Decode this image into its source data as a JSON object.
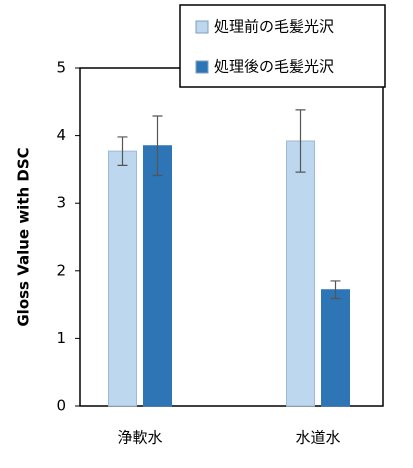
{
  "chart_data": {
    "type": "bar",
    "ylabel": "Gloss Value with DSC",
    "categories": [
      "浄軟水",
      "水道水"
    ],
    "series": [
      {
        "name": "処理前の毛髪光沢",
        "color": "#bdd7ee",
        "values": [
          3.77,
          3.92
        ],
        "errors": [
          0.21,
          0.46
        ]
      },
      {
        "name": "処理後の毛髪光沢",
        "color": "#2e75b6",
        "values": [
          3.85,
          1.72
        ],
        "errors": [
          0.44,
          0.13
        ]
      }
    ],
    "ylim": [
      0,
      5
    ],
    "yticks": [
      0,
      1,
      2,
      3,
      4,
      5
    ],
    "grid": false,
    "legend": "top-right"
  }
}
